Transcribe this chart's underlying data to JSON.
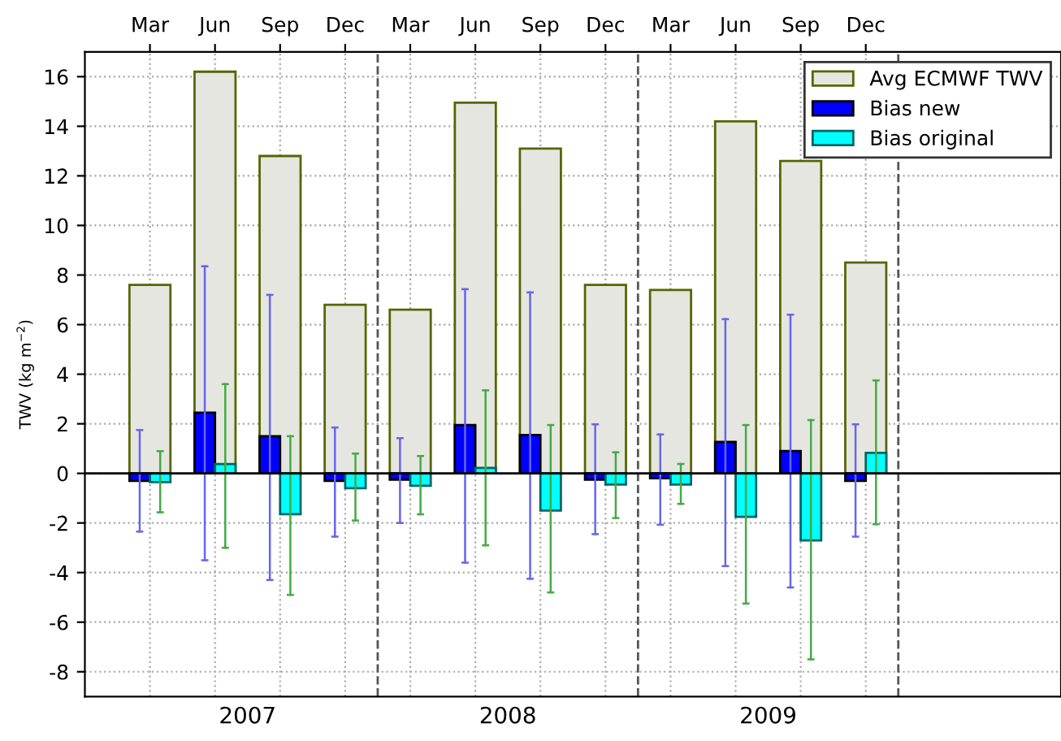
{
  "chart_data": {
    "type": "bar",
    "categories": [
      "Mar",
      "Jun",
      "Sep",
      "Dec",
      "Mar",
      "Jun",
      "Sep",
      "Dec",
      "Mar",
      "Jun",
      "Sep",
      "Dec"
    ],
    "ylabel": "TWV (kg m$^{−2}$)",
    "series": [
      {
        "name": "Avg ECMWF TWV",
        "color": "#e6e6e0",
        "values": [
          7.6,
          16.2,
          12.8,
          6.8,
          6.6,
          14.95,
          13.1,
          7.6,
          7.4,
          14.2,
          12.6,
          8.5
        ]
      },
      {
        "name": "Bias new",
        "color": "#0000ff",
        "values": [
          -0.3,
          2.45,
          1.5,
          -0.3,
          -0.25,
          1.95,
          1.55,
          -0.25,
          -0.2,
          1.27,
          0.9,
          -0.3
        ],
        "errors": [
          [
            -2.35,
            1.75
          ],
          [
            -3.5,
            8.35
          ],
          [
            -4.3,
            7.2
          ],
          [
            -2.55,
            1.85
          ],
          [
            -2.0,
            1.42
          ],
          [
            -3.6,
            7.43
          ],
          [
            -4.25,
            7.3
          ],
          [
            -2.45,
            1.98
          ],
          [
            -2.07,
            1.57
          ],
          [
            -3.74,
            6.22
          ],
          [
            -4.6,
            6.4
          ],
          [
            -2.55,
            1.98
          ]
        ]
      },
      {
        "name": "Bias original",
        "color": "#00ffff",
        "values": [
          -0.35,
          0.38,
          -1.65,
          -0.6,
          -0.5,
          0.22,
          -1.5,
          -0.45,
          -0.45,
          -1.75,
          -2.7,
          0.83
        ],
        "errors": [
          [
            -1.57,
            0.9
          ],
          [
            -3.0,
            3.6
          ],
          [
            -4.9,
            1.5
          ],
          [
            -1.9,
            0.8
          ],
          [
            -1.65,
            0.7
          ],
          [
            -2.9,
            3.35
          ],
          [
            -4.8,
            1.95
          ],
          [
            -1.8,
            0.85
          ],
          [
            -1.23,
            0.38
          ],
          [
            -5.25,
            1.95
          ],
          [
            -7.5,
            2.15
          ],
          [
            -2.05,
            3.75
          ]
        ]
      }
    ],
    "annotations": [
      "2007",
      "2008",
      "2009"
    ],
    "ylim": [
      -9,
      17
    ],
    "yticks": [
      -8,
      -6,
      -4,
      -2,
      0,
      2,
      4,
      6,
      8,
      10,
      12,
      14,
      16
    ],
    "ref_lines": [
      {
        "axis": "y",
        "value": 0,
        "color": "#000000",
        "line_style": "solid"
      }
    ],
    "grid": true,
    "legend": "top right"
  }
}
